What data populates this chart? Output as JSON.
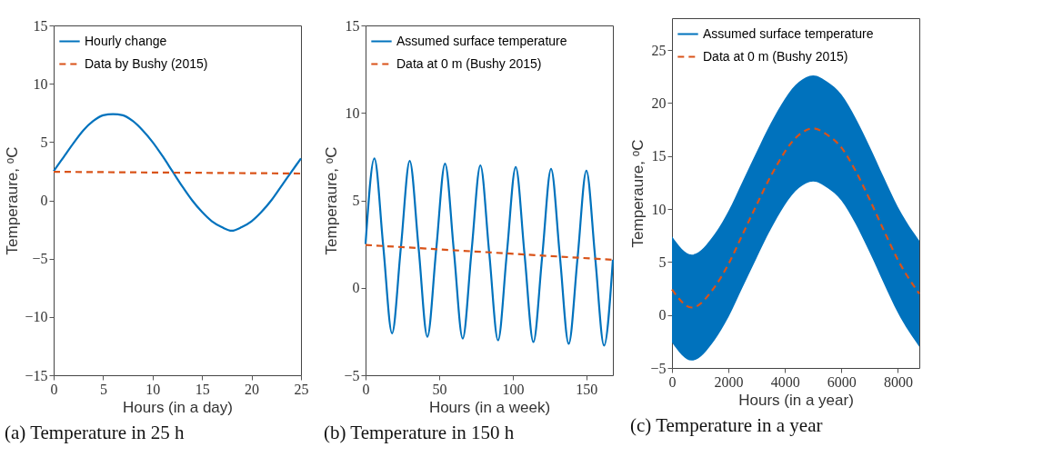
{
  "chart_data": [
    {
      "type": "line",
      "title": "(a) Temperature in 25 h",
      "xlabel": "Hours (in a day)",
      "ylabel": "Temperaure, ᵒC",
      "xlim": [
        0,
        25
      ],
      "xticks": [
        0,
        5,
        10,
        15,
        20,
        25
      ],
      "ylim": [
        -15,
        15
      ],
      "yticks": [
        -15,
        -10,
        -5,
        0,
        5,
        10,
        15
      ],
      "legend": "top left",
      "series": [
        {
          "name": "Hourly change",
          "color": "#0072bd",
          "line_style": "solid",
          "x": [
            0,
            1,
            2,
            3,
            4,
            5,
            6,
            7,
            8,
            9,
            10,
            11,
            12,
            13,
            14,
            15,
            16,
            17,
            18,
            19,
            20,
            21,
            22,
            23,
            24,
            25
          ],
          "values": [
            2.5,
            3.7,
            4.9,
            6.0,
            6.8,
            7.3,
            7.4,
            7.3,
            6.8,
            6.0,
            5.0,
            3.8,
            2.5,
            1.2,
            0.0,
            -1.0,
            -1.8,
            -2.3,
            -2.6,
            -2.3,
            -1.8,
            -1.0,
            0.0,
            1.2,
            2.4,
            3.6
          ]
        },
        {
          "name": "Data by Bushy (2015)",
          "color": "#d95319",
          "line_style": "dashed",
          "x": [
            0,
            25
          ],
          "values": [
            2.45,
            2.3
          ]
        }
      ]
    },
    {
      "type": "line",
      "title": "(b) Temperature in 150 h",
      "xlabel": "Hours (in a week)",
      "ylabel": "Temperaure, ᵒC",
      "xlim": [
        0,
        168
      ],
      "xticks": [
        0,
        50,
        100,
        150
      ],
      "ylim": [
        -5,
        15
      ],
      "yticks": [
        -5,
        0,
        5,
        10,
        15
      ],
      "legend": "top left",
      "series": [
        {
          "name": "Assumed surface temperature",
          "color": "#0072bd",
          "line_style": "solid",
          "x": [
            0,
            6,
            12,
            18,
            24,
            30,
            36,
            42,
            48,
            54,
            60,
            66,
            72,
            78,
            84,
            90,
            96,
            102,
            108,
            114,
            120,
            126,
            132,
            138,
            144,
            150,
            156,
            162,
            168
          ],
          "values": [
            2.5,
            7.4,
            2.4,
            -2.6,
            2.3,
            7.25,
            2.3,
            -2.8,
            2.2,
            7.1,
            2.1,
            -2.9,
            2.1,
            7.0,
            2.0,
            -3.0,
            2.0,
            6.9,
            1.9,
            -3.1,
            1.8,
            6.8,
            1.8,
            -3.2,
            1.7,
            6.7,
            1.7,
            -3.3,
            1.6
          ]
        },
        {
          "name": "Data at 0 m (Bushy 2015)",
          "color": "#d95319",
          "line_style": "dashed",
          "x": [
            0,
            168
          ],
          "values": [
            2.45,
            1.6
          ]
        }
      ]
    },
    {
      "type": "line",
      "title": "(c) Temperature in a year",
      "xlabel": "Hours (in a year)",
      "ylabel": "Temperaure, ᵒC",
      "xlim": [
        0,
        8760
      ],
      "xticks": [
        0,
        2000,
        4000,
        6000,
        8000
      ],
      "ylim": [
        -5,
        28
      ],
      "yticks": [
        -5,
        0,
        5,
        10,
        15,
        20,
        25
      ],
      "legend": "top left",
      "series": [
        {
          "name": "Assumed surface temperature",
          "color": "#0072bd",
          "line_style": "solid",
          "x": [
            0,
            700,
            1500,
            2000,
            2500,
            3000,
            3500,
            4500,
            5000,
            5500,
            6000,
            6500,
            7000,
            7500,
            8000,
            8760
          ],
          "values": [
            null,
            null,
            null,
            null,
            null,
            null,
            null,
            null,
            null,
            null,
            null,
            null,
            null,
            null,
            null,
            null
          ],
          "upper": [
            7.4,
            5.7,
            7.6,
            9.8,
            12.6,
            15.4,
            18.1,
            22.0,
            22.6,
            22.0,
            20.8,
            18.6,
            15.9,
            13.0,
            10.2,
            7.0
          ],
          "lower": [
            -2.6,
            -4.3,
            -2.4,
            -0.2,
            2.6,
            5.4,
            8.1,
            12.0,
            12.6,
            12.0,
            10.8,
            8.6,
            5.9,
            3.0,
            0.2,
            -3.0
          ]
        },
        {
          "name": "Data at 0 m (Bushy 2015)",
          "color": "#d95319",
          "line_style": "dashed",
          "x": [
            0,
            700,
            1500,
            2000,
            2500,
            3000,
            3500,
            4500,
            5000,
            5500,
            6000,
            6500,
            7000,
            7500,
            8000,
            8760
          ],
          "values": [
            2.4,
            0.7,
            2.6,
            4.8,
            7.6,
            10.4,
            13.1,
            17.0,
            17.6,
            17.0,
            15.8,
            13.6,
            10.9,
            8.0,
            5.2,
            2.0
          ]
        }
      ]
    }
  ]
}
